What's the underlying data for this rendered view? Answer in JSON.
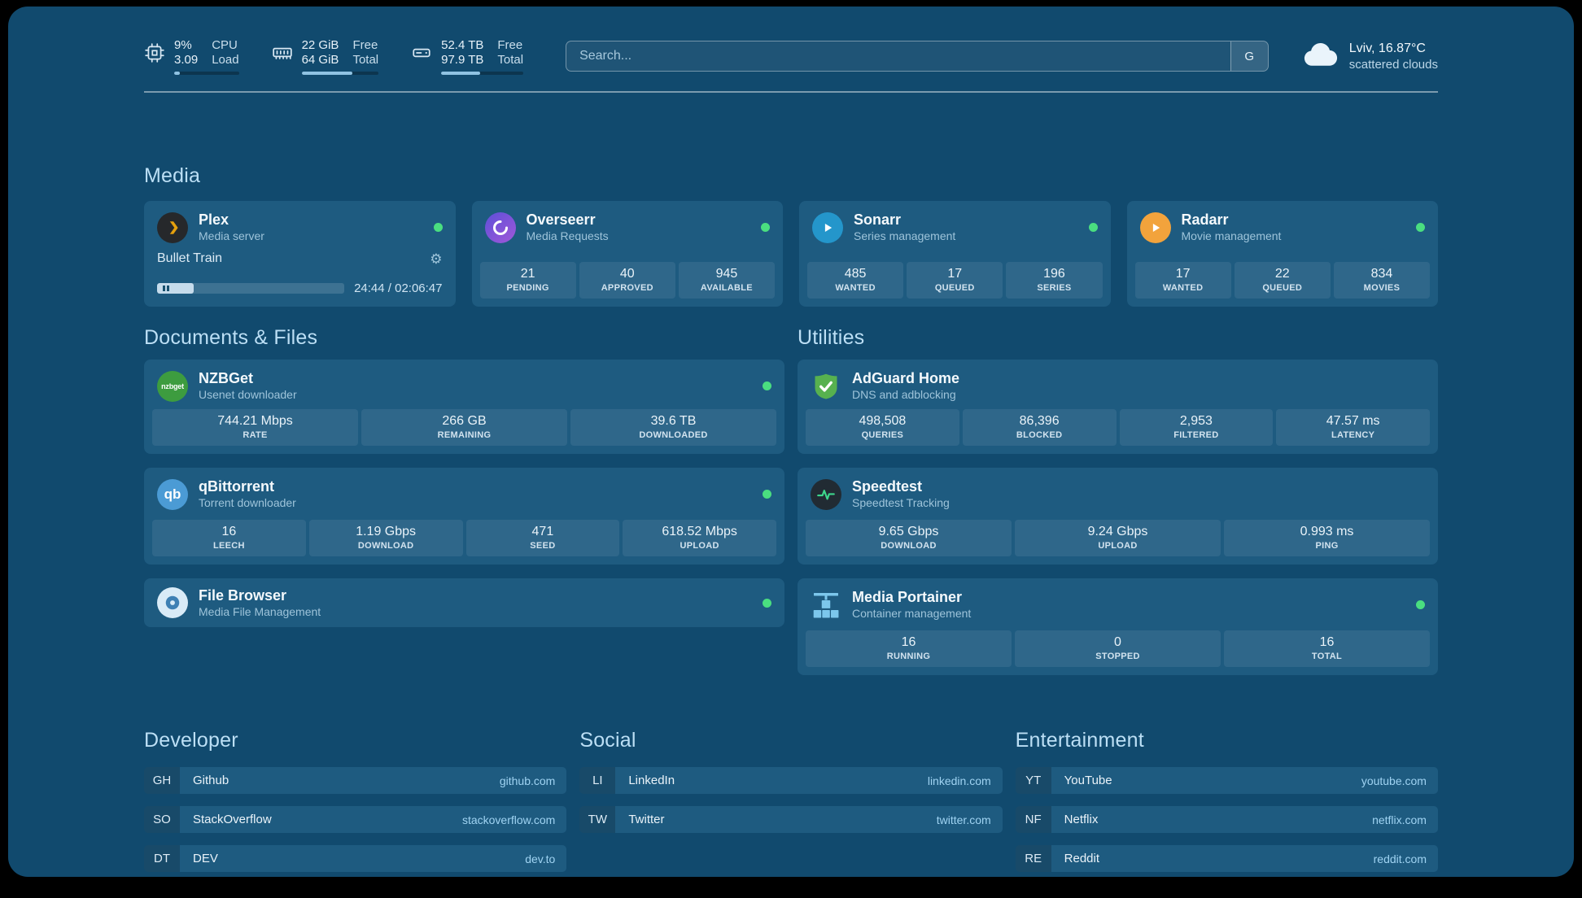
{
  "colors": {
    "page_bg": "#114A6E",
    "card_bg": "#1E5B80",
    "section_title": "#BCDFF5",
    "status_online_green": "#4ADE80",
    "bookmark_url_blue": "#9FD3F2",
    "plex_accent": "#E5A00D"
  },
  "topbar": {
    "resources": [
      {
        "icon": "cpu-icon",
        "values": [
          "9%",
          "3.09"
        ],
        "labels": [
          "CPU",
          "Load"
        ],
        "progress_percent": 9
      },
      {
        "icon": "memory-icon",
        "values": [
          "22 GiB",
          "64 GiB"
        ],
        "labels": [
          "Free",
          "Total"
        ],
        "progress_percent": 66
      },
      {
        "icon": "disk-icon",
        "values": [
          "52.4 TB",
          "97.9 TB"
        ],
        "labels": [
          "Free",
          "Total"
        ],
        "progress_percent": 47
      }
    ],
    "search": {
      "placeholder": "Search...",
      "provider_button": "G"
    },
    "weather": {
      "location": "Lviv, 16.87°C",
      "condition": "scattered clouds",
      "icon": "cloud-icon"
    }
  },
  "sections": {
    "media": {
      "title": "Media",
      "services": [
        {
          "name": "Plex",
          "subtitle": "Media server",
          "status": "online",
          "player": {
            "now_playing": "Bullet Train",
            "time_display": "24:44 / 02:06:47",
            "progress_percent": 19.5,
            "state": "paused"
          }
        },
        {
          "name": "Overseerr",
          "subtitle": "Media Requests",
          "status": "online",
          "stats": [
            {
              "value": "21",
              "label": "PENDING"
            },
            {
              "value": "40",
              "label": "APPROVED"
            },
            {
              "value": "945",
              "label": "AVAILABLE"
            }
          ]
        },
        {
          "name": "Sonarr",
          "subtitle": "Series management",
          "status": "online",
          "stats": [
            {
              "value": "485",
              "label": "WANTED"
            },
            {
              "value": "17",
              "label": "QUEUED"
            },
            {
              "value": "196",
              "label": "SERIES"
            }
          ]
        },
        {
          "name": "Radarr",
          "subtitle": "Movie management",
          "status": "online",
          "stats": [
            {
              "value": "17",
              "label": "WANTED"
            },
            {
              "value": "22",
              "label": "QUEUED"
            },
            {
              "value": "834",
              "label": "MOVIES"
            }
          ]
        }
      ]
    },
    "documents": {
      "title": "Documents & Files",
      "services": [
        {
          "name": "NZBGet",
          "subtitle": "Usenet downloader",
          "status": "online",
          "stats": [
            {
              "value": "744.21 Mbps",
              "label": "RATE"
            },
            {
              "value": "266 GB",
              "label": "REMAINING"
            },
            {
              "value": "39.6 TB",
              "label": "DOWNLOADED"
            }
          ]
        },
        {
          "name": "qBittorrent",
          "subtitle": "Torrent downloader",
          "status": "online",
          "stats": [
            {
              "value": "16",
              "label": "LEECH"
            },
            {
              "value": "1.19 Gbps",
              "label": "DOWNLOAD"
            },
            {
              "value": "471",
              "label": "SEED"
            },
            {
              "value": "618.52 Mbps",
              "label": "UPLOAD"
            }
          ]
        },
        {
          "name": "File Browser",
          "subtitle": "Media File Management",
          "status": "online",
          "stats": []
        }
      ]
    },
    "utilities": {
      "title": "Utilities",
      "services": [
        {
          "name": "AdGuard Home",
          "subtitle": "DNS and adblocking",
          "stats": [
            {
              "value": "498,508",
              "label": "QUERIES"
            },
            {
              "value": "86,396",
              "label": "BLOCKED"
            },
            {
              "value": "2,953",
              "label": "FILTERED"
            },
            {
              "value": "47.57 ms",
              "label": "LATENCY"
            }
          ]
        },
        {
          "name": "Speedtest",
          "subtitle": "Speedtest Tracking",
          "stats": [
            {
              "value": "9.65 Gbps",
              "label": "DOWNLOAD"
            },
            {
              "value": "9.24 Gbps",
              "label": "UPLOAD"
            },
            {
              "value": "0.993 ms",
              "label": "PING"
            }
          ]
        },
        {
          "name": "Media Portainer",
          "subtitle": "Container management",
          "status": "online",
          "stats": [
            {
              "value": "16",
              "label": "RUNNING"
            },
            {
              "value": "0",
              "label": "STOPPED"
            },
            {
              "value": "16",
              "label": "TOTAL"
            }
          ]
        }
      ]
    }
  },
  "bookmarks": {
    "groups": [
      {
        "title": "Developer",
        "items": [
          {
            "abbr": "GH",
            "name": "Github",
            "url": "github.com"
          },
          {
            "abbr": "SO",
            "name": "StackOverflow",
            "url": "stackoverflow.com"
          },
          {
            "abbr": "DT",
            "name": "DEV",
            "url": "dev.to"
          }
        ]
      },
      {
        "title": "Social",
        "items": [
          {
            "abbr": "LI",
            "name": "LinkedIn",
            "url": "linkedin.com"
          },
          {
            "abbr": "TW",
            "name": "Twitter",
            "url": "twitter.com"
          }
        ]
      },
      {
        "title": "Entertainment",
        "items": [
          {
            "abbr": "YT",
            "name": "YouTube",
            "url": "youtube.com"
          },
          {
            "abbr": "NF",
            "name": "Netflix",
            "url": "netflix.com"
          },
          {
            "abbr": "RE",
            "name": "Reddit",
            "url": "reddit.com"
          }
        ]
      }
    ]
  }
}
